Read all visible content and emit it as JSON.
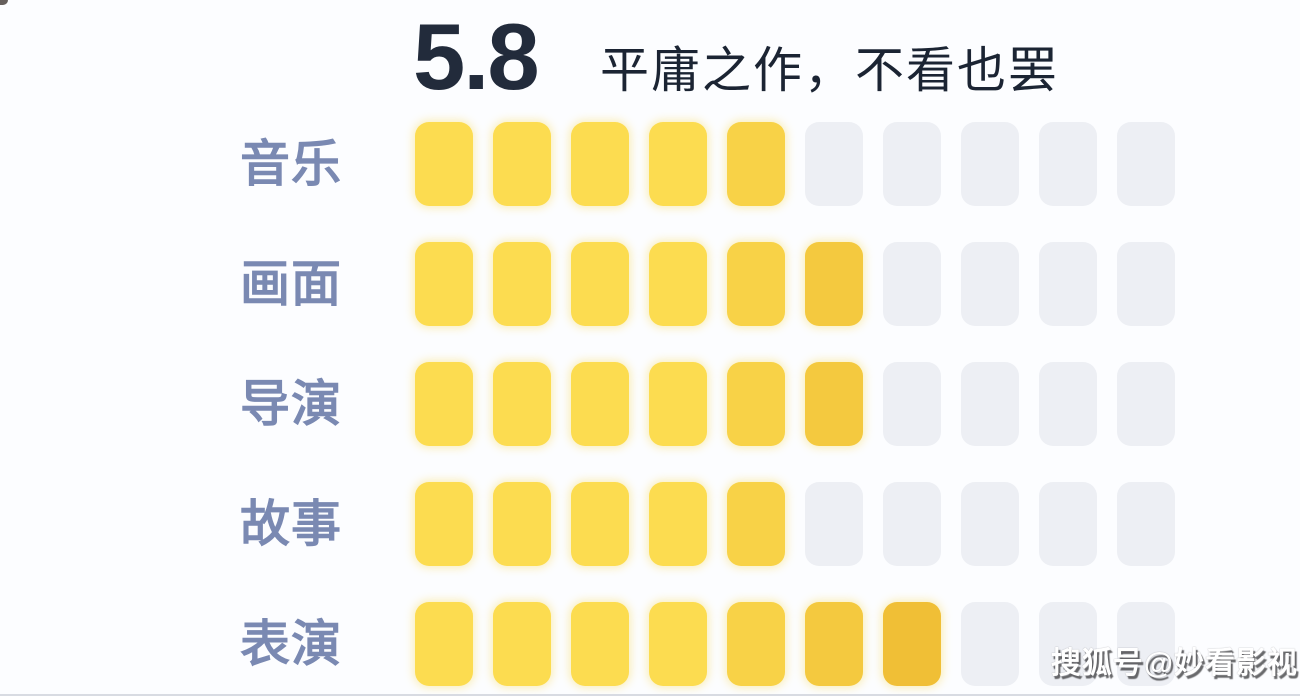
{
  "header": {
    "score": "5.8",
    "verdict": "平庸之作，不看也罢"
  },
  "chart_data": {
    "type": "bar",
    "title": "5.8",
    "subtitle": "平庸之作，不看也罢",
    "categories": [
      "音乐",
      "画面",
      "导演",
      "故事",
      "表演"
    ],
    "values": [
      5,
      6,
      6,
      5,
      7
    ],
    "xlabel": "",
    "ylabel": "",
    "ylim": [
      0,
      10
    ],
    "grid": false,
    "legend": false,
    "overall_score": 5.8,
    "segments_per_row": 10
  },
  "ratings": {
    "max_blocks": 10,
    "rows": [
      {
        "label": "音乐",
        "filled": 5
      },
      {
        "label": "画面",
        "filled": 6
      },
      {
        "label": "导演",
        "filled": 6
      },
      {
        "label": "故事",
        "filled": 5
      },
      {
        "label": "表演",
        "filled": 7
      }
    ]
  },
  "watermark": {
    "text": "搜狐号@妙看影视"
  },
  "colors": {
    "background": "#FCFDFF",
    "score_text": "#222B3B",
    "verdict_text": "#1B2433",
    "label_text": "#7A89B2",
    "filled_start": "#FCDC50",
    "filled_end": "#F0BF36",
    "empty": "#EDEFF4"
  }
}
